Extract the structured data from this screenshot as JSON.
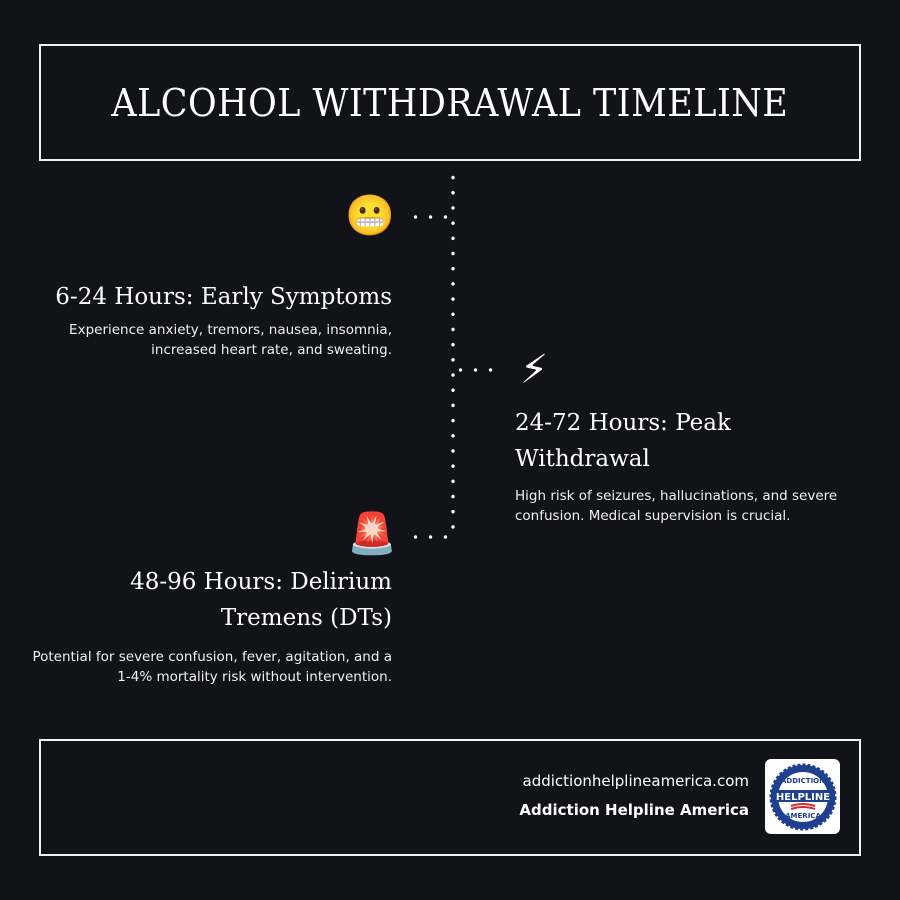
{
  "title": "ALCOHOL WITHDRAWAL TIMELINE",
  "stages": [
    {
      "icon": "grimacing-face-icon",
      "emoji": "😬",
      "heading": "6-24 Hours: Early Symptoms",
      "text": "Experience anxiety, tremors, nausea, insomnia, increased heart rate, and sweating."
    },
    {
      "icon": "lightning-icon",
      "emoji": "⚡",
      "heading": "24-72 Hours: Peak Withdrawal",
      "text": "High risk of seizures, hallucinations, and severe confusion. Medical supervision is crucial."
    },
    {
      "icon": "siren-icon",
      "emoji": "🚨",
      "heading": "48-96 Hours: Delirium Tremens (DTs)",
      "text": "Potential for severe confusion, fever, agitation, and a 1-4% mortality risk without intervention."
    }
  ],
  "footer": {
    "url": "addictionhelplineamerica.com",
    "org": "Addiction Helpline America",
    "logo": {
      "top": "ADDICTION",
      "middle": "HELPLINE",
      "bottom": "AMERICA"
    }
  },
  "colors": {
    "background": "#121319",
    "text": "#ffffff",
    "logo_blue": "#1f3f8f",
    "logo_red": "#d32f2f"
  }
}
